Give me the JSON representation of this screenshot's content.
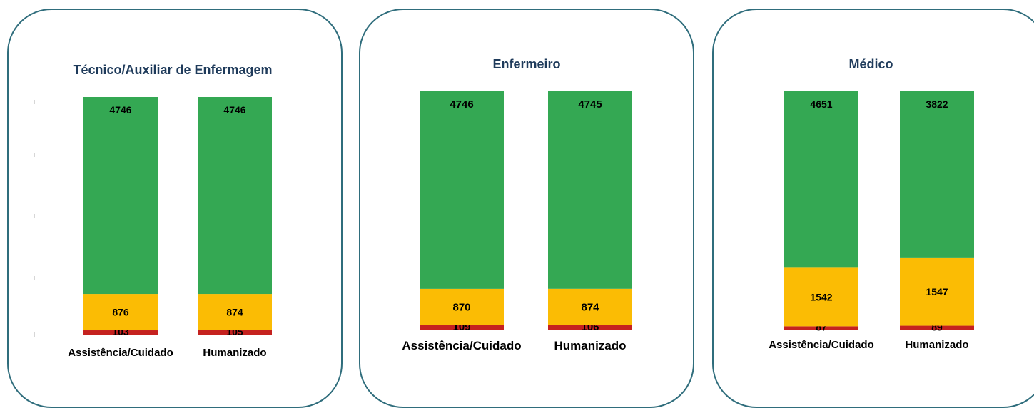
{
  "colors": {
    "verde": "#34a853",
    "amarelo": "#fbbc04",
    "vermelho": "#c5221f",
    "borda": "#2f6d7c"
  },
  "chart_data": [
    {
      "type": "bar",
      "stacked": true,
      "title": "Técnico/Auxiliar de Enfermagem",
      "categories": [
        "Assistência/Cuidado",
        "Humanizado"
      ],
      "series": [
        {
          "color": "#c5221f",
          "values": [
            103,
            105
          ]
        },
        {
          "color": "#fbbc04",
          "values": [
            876,
            874
          ]
        },
        {
          "color": "#34a853",
          "values": [
            4746,
            4746
          ]
        }
      ]
    },
    {
      "type": "bar",
      "stacked": true,
      "title": "Enfermeiro",
      "categories": [
        "Assistência/Cuidado",
        "Humanizado"
      ],
      "series": [
        {
          "color": "#c5221f",
          "values": [
            109,
            106
          ]
        },
        {
          "color": "#fbbc04",
          "values": [
            870,
            874
          ]
        },
        {
          "color": "#34a853",
          "values": [
            4746,
            4745
          ]
        }
      ]
    },
    {
      "type": "bar",
      "stacked": true,
      "title": "Médico",
      "categories": [
        "Assistência/Cuidado",
        "Humanizado"
      ],
      "series": [
        {
          "color": "#c5221f",
          "values": [
            87,
            89
          ]
        },
        {
          "color": "#fbbc04",
          "values": [
            1542,
            1547
          ]
        },
        {
          "color": "#34a853",
          "values": [
            4651,
            3822
          ]
        }
      ]
    }
  ]
}
